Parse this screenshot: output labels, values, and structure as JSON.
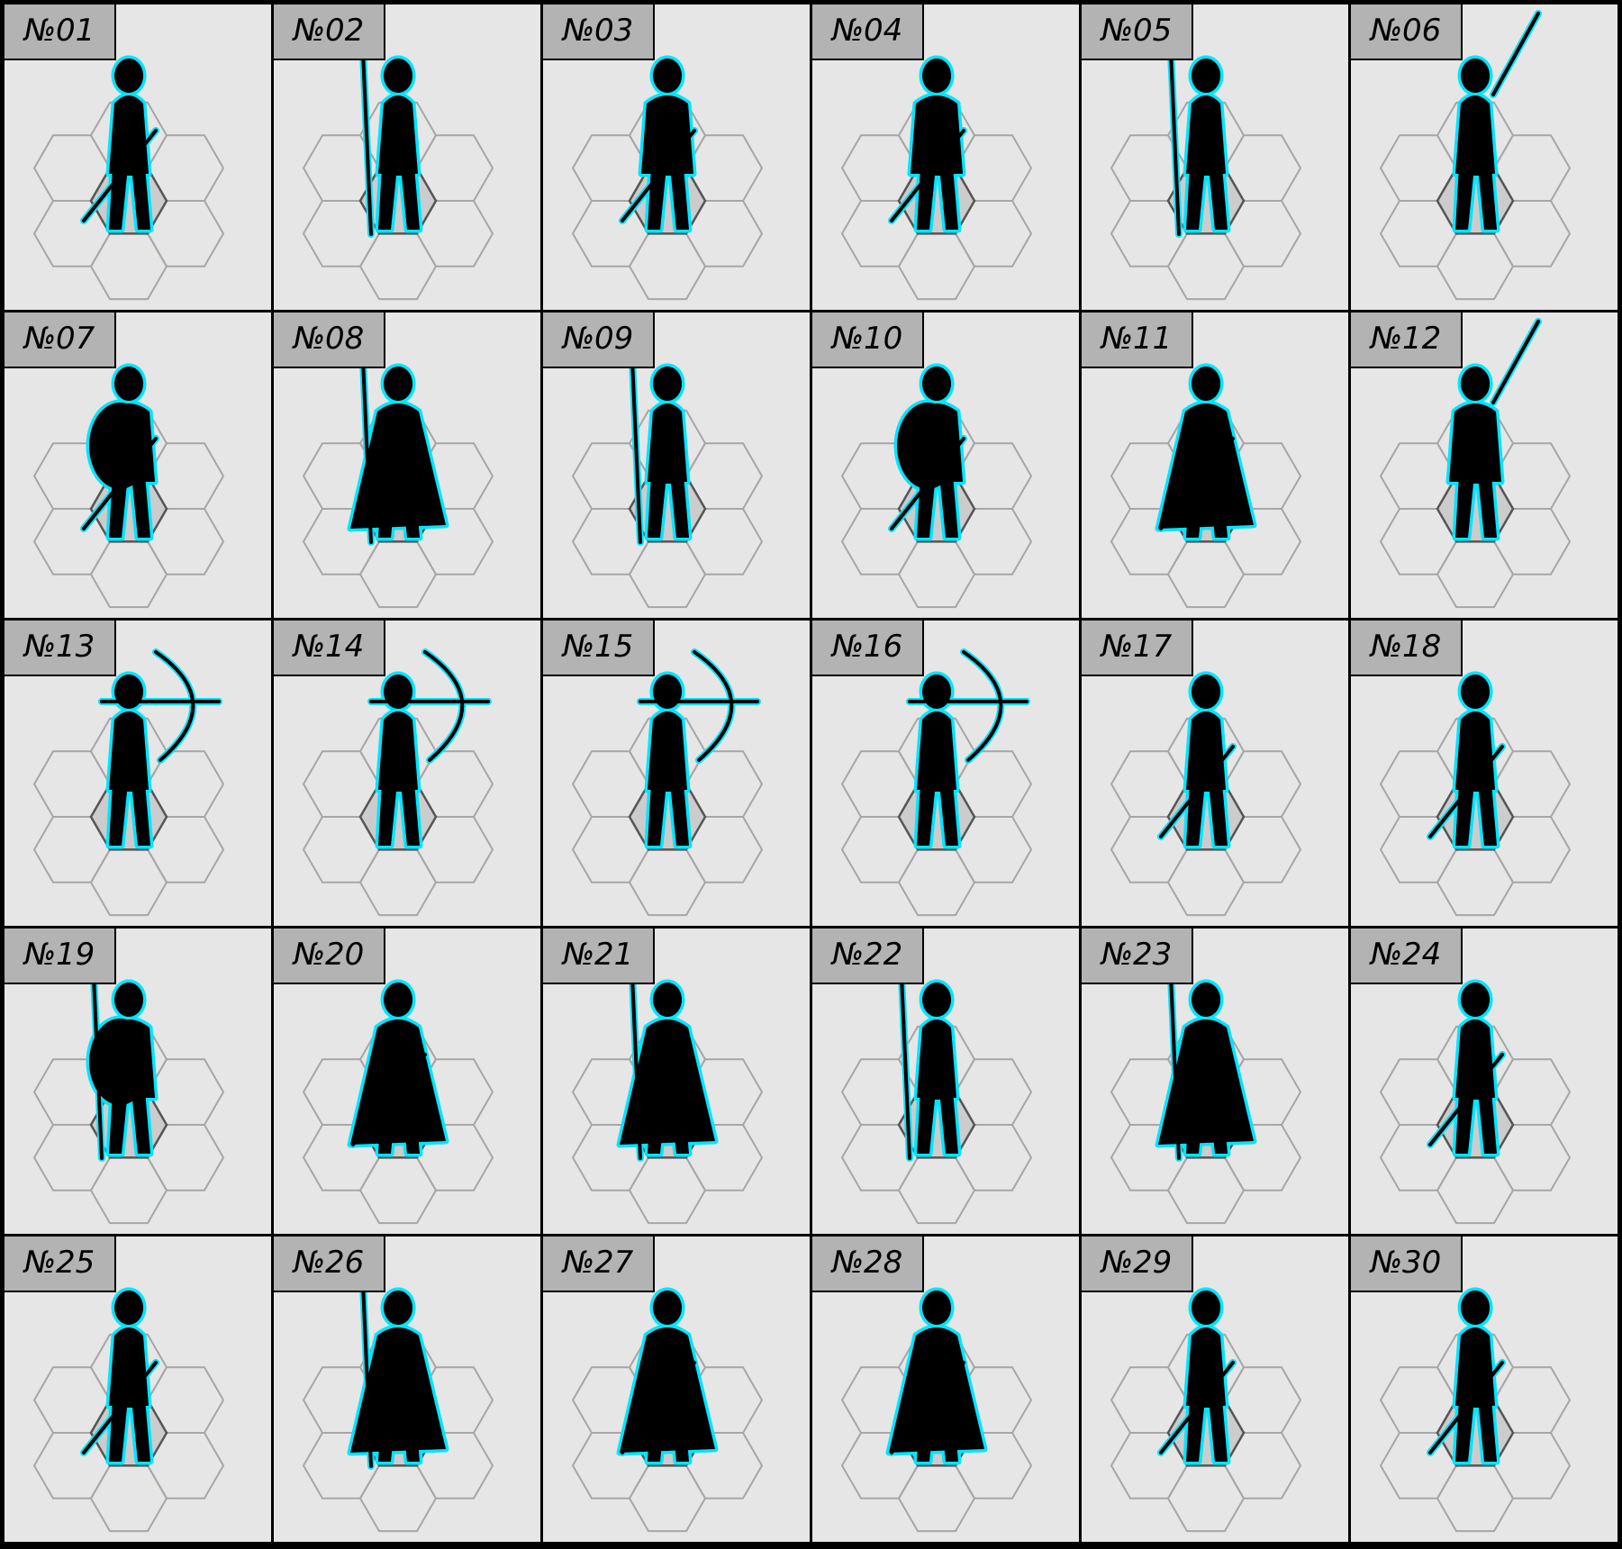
{
  "tokens": [
    {
      "label": "№01",
      "pose": "hooded-sword"
    },
    {
      "label": "№02",
      "pose": "staff-raised"
    },
    {
      "label": "№03",
      "pose": "greatsword-brute"
    },
    {
      "label": "№04",
      "pose": "dual-blade-crouch"
    },
    {
      "label": "№05",
      "pose": "ring-staff-caster"
    },
    {
      "label": "№06",
      "pose": "dual-sword-raised"
    },
    {
      "label": "№07",
      "pose": "shield-helmet"
    },
    {
      "label": "№08",
      "pose": "cloak-cane"
    },
    {
      "label": "№09",
      "pose": "low-spear"
    },
    {
      "label": "№10",
      "pose": "helmet-shield-blade"
    },
    {
      "label": "№11",
      "pose": "robed-sword-down"
    },
    {
      "label": "№12",
      "pose": "crouch-blade-overhead"
    },
    {
      "label": "№13",
      "pose": "leaping-archer"
    },
    {
      "label": "№14",
      "pose": "archer-drawing"
    },
    {
      "label": "№15",
      "pose": "longbow-archer"
    },
    {
      "label": "№16",
      "pose": "archer-slim"
    },
    {
      "label": "№17",
      "pose": "hat-curved-blade"
    },
    {
      "label": "№18",
      "pose": "hooded-scimitar"
    },
    {
      "label": "№19",
      "pose": "ornate-shield-staff"
    },
    {
      "label": "№20",
      "pose": "caped-swordsman"
    },
    {
      "label": "№21",
      "pose": "caped-staff"
    },
    {
      "label": "№22",
      "pose": "staff-hand-on-hip"
    },
    {
      "label": "№23",
      "pose": "spear-dress"
    },
    {
      "label": "№24",
      "pose": "rapier-tail"
    },
    {
      "label": "№25",
      "pose": "townsfolk-boots"
    },
    {
      "label": "№26",
      "pose": "robed-cane-gesture"
    },
    {
      "label": "№27",
      "pose": "long-coat"
    },
    {
      "label": "№28",
      "pose": "robed-standing"
    },
    {
      "label": "№29",
      "pose": "tunic-standing"
    },
    {
      "label": "№30",
      "pose": "slim-standing"
    }
  ],
  "colors": {
    "cell_background": "#e6e6e6",
    "label_background": "#b3b3b3",
    "hex_outline": "#a6a6a6",
    "hex_center_fill": "#cccccc",
    "hex_center_stroke": "#555555",
    "silhouette": "#000000",
    "glow": "#00e5ff",
    "border": "#000000"
  }
}
